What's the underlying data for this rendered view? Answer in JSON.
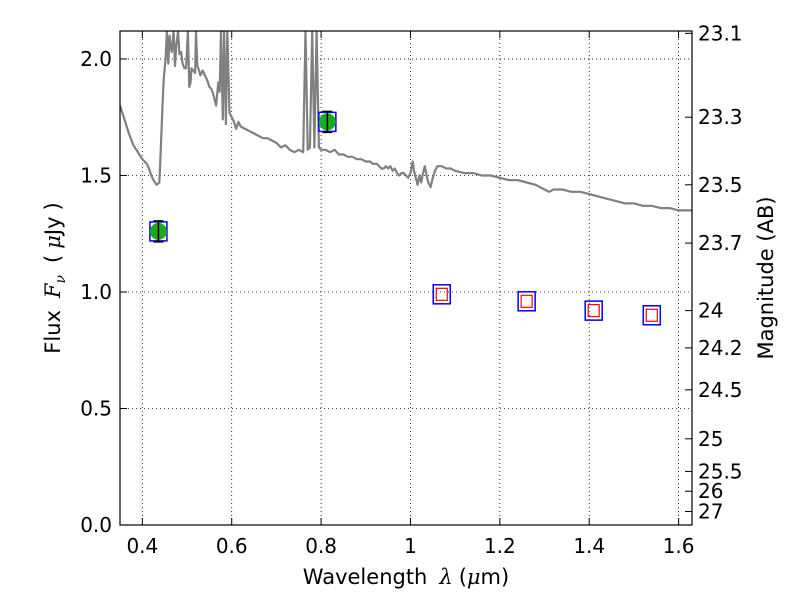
{
  "chart_data": {
    "type": "scatter",
    "xlabel_prefix": "Wavelength",
    "xlabel_math": "λ",
    "xlabel_unit_open": "(",
    "xlabel_unit_mu": "μ",
    "xlabel_unit_rest": "m)",
    "ylabel_prefix": "Flux",
    "ylabel_math": "F",
    "ylabel_math_sub": "ν",
    "ylabel_paren_open": "(",
    "ylabel_unit_mu": "μ",
    "ylabel_unit_rest": "Jy",
    "ylabel_paren_close": ")",
    "y2label": "Magnitude (AB)",
    "xlim": [
      0.35,
      1.63
    ],
    "ylim": [
      0.0,
      2.12
    ],
    "grid": true,
    "x_ticks": [
      0.4,
      0.6,
      0.8,
      1.0,
      1.2,
      1.4,
      1.6
    ],
    "x_tick_labels": [
      "0.4",
      "0.6",
      "0.8",
      "1",
      "1.2",
      "1.4",
      "1.6"
    ],
    "y_ticks": [
      0.0,
      0.5,
      1.0,
      1.5,
      2.0
    ],
    "y_tick_labels": [
      "0.0",
      "0.5",
      "1.0",
      "1.5",
      "2.0"
    ],
    "y2_ticks": [
      {
        "label": "23.1",
        "flux": 2.11
      },
      {
        "label": "23.3",
        "flux": 1.75
      },
      {
        "label": "23.5",
        "flux": 1.46
      },
      {
        "label": "23.7",
        "flux": 1.21
      },
      {
        "label": "24",
        "flux": 0.92
      },
      {
        "label": "24.2",
        "flux": 0.76
      },
      {
        "label": "24.5",
        "flux": 0.58
      },
      {
        "label": "25",
        "flux": 0.37
      },
      {
        "label": "25.5",
        "flux": 0.23
      },
      {
        "label": "26",
        "flux": 0.145
      },
      {
        "label": "27",
        "flux": 0.058
      }
    ],
    "series": [
      {
        "kind": "line",
        "color": "#808080",
        "points": [
          [
            0.35,
            1.8
          ],
          [
            0.36,
            1.74
          ],
          [
            0.37,
            1.68
          ],
          [
            0.38,
            1.63
          ],
          [
            0.39,
            1.6
          ],
          [
            0.4,
            1.57
          ],
          [
            0.41,
            1.55
          ],
          [
            0.415,
            1.53
          ],
          [
            0.42,
            1.5
          ],
          [
            0.425,
            1.48
          ],
          [
            0.432,
            1.46
          ],
          [
            0.438,
            1.47
          ],
          [
            0.44,
            1.55
          ],
          [
            0.445,
            1.8
          ],
          [
            0.448,
            1.92
          ],
          [
            0.452,
            2.0
          ],
          [
            0.455,
            2.12
          ],
          [
            0.458,
            1.98
          ],
          [
            0.461,
            2.1
          ],
          [
            0.463,
            2.06
          ],
          [
            0.466,
            2.03
          ],
          [
            0.47,
            2.12
          ],
          [
            0.473,
            1.97
          ],
          [
            0.476,
            2.06
          ],
          [
            0.48,
            2.12
          ],
          [
            0.483,
            2.02
          ],
          [
            0.487,
            2.03
          ],
          [
            0.49,
            1.98
          ],
          [
            0.494,
            1.96
          ],
          [
            0.498,
            1.96
          ],
          [
            0.502,
            2.12
          ],
          [
            0.505,
            1.88
          ],
          [
            0.508,
            1.9
          ],
          [
            0.51,
            1.96
          ],
          [
            0.514,
            1.95
          ],
          [
            0.518,
            1.94
          ],
          [
            0.52,
            2.12
          ],
          [
            0.523,
            1.97
          ],
          [
            0.527,
            1.95
          ],
          [
            0.53,
            1.93
          ],
          [
            0.535,
            1.95
          ],
          [
            0.54,
            1.93
          ],
          [
            0.545,
            1.91
          ],
          [
            0.55,
            1.88
          ],
          [
            0.555,
            1.87
          ],
          [
            0.56,
            1.84
          ],
          [
            0.565,
            1.8
          ],
          [
            0.57,
            1.9
          ],
          [
            0.573,
            1.86
          ],
          [
            0.576,
            2.12
          ],
          [
            0.58,
            1.74
          ],
          [
            0.583,
            2.12
          ],
          [
            0.587,
            1.72
          ],
          [
            0.59,
            2.12
          ],
          [
            0.595,
            1.77
          ],
          [
            0.6,
            1.75
          ],
          [
            0.605,
            1.73
          ],
          [
            0.61,
            1.7
          ],
          [
            0.615,
            1.73
          ],
          [
            0.62,
            1.71
          ],
          [
            0.63,
            1.7
          ],
          [
            0.64,
            1.69
          ],
          [
            0.65,
            1.68
          ],
          [
            0.66,
            1.67
          ],
          [
            0.67,
            1.66
          ],
          [
            0.68,
            1.66
          ],
          [
            0.69,
            1.65
          ],
          [
            0.7,
            1.64
          ],
          [
            0.71,
            1.62
          ],
          [
            0.72,
            1.63
          ],
          [
            0.73,
            1.61
          ],
          [
            0.74,
            1.6
          ],
          [
            0.75,
            1.61
          ],
          [
            0.76,
            1.6
          ],
          [
            0.765,
            2.12
          ],
          [
            0.77,
            1.61
          ],
          [
            0.775,
            1.62
          ],
          [
            0.78,
            2.12
          ],
          [
            0.785,
            1.62
          ],
          [
            0.79,
            2.12
          ],
          [
            0.795,
            1.62
          ],
          [
            0.8,
            1.61
          ],
          [
            0.81,
            1.61
          ],
          [
            0.82,
            1.6
          ],
          [
            0.83,
            1.61
          ],
          [
            0.84,
            1.59
          ],
          [
            0.85,
            1.59
          ],
          [
            0.86,
            1.58
          ],
          [
            0.87,
            1.58
          ],
          [
            0.88,
            1.57
          ],
          [
            0.89,
            1.57
          ],
          [
            0.9,
            1.56
          ],
          [
            0.91,
            1.56
          ],
          [
            0.915,
            1.55
          ],
          [
            0.92,
            1.55
          ],
          [
            0.925,
            1.55
          ],
          [
            0.93,
            1.54
          ],
          [
            0.935,
            1.53
          ],
          [
            0.94,
            1.53
          ],
          [
            0.945,
            1.54
          ],
          [
            0.95,
            1.53
          ],
          [
            0.955,
            1.54
          ],
          [
            0.96,
            1.52
          ],
          [
            0.965,
            1.53
          ],
          [
            0.97,
            1.51
          ],
          [
            0.975,
            1.5
          ],
          [
            0.98,
            1.51
          ],
          [
            0.985,
            1.51
          ],
          [
            0.99,
            1.5
          ],
          [
            0.995,
            1.49
          ],
          [
            1.0,
            1.51
          ],
          [
            1.002,
            1.53
          ],
          [
            1.005,
            1.56
          ],
          [
            1.008,
            1.52
          ],
          [
            1.012,
            1.49
          ],
          [
            1.016,
            1.46
          ],
          [
            1.02,
            1.5
          ],
          [
            1.024,
            1.47
          ],
          [
            1.028,
            1.51
          ],
          [
            1.032,
            1.54
          ],
          [
            1.036,
            1.5
          ],
          [
            1.04,
            1.47
          ],
          [
            1.045,
            1.45
          ],
          [
            1.05,
            1.49
          ],
          [
            1.055,
            1.52
          ],
          [
            1.06,
            1.54
          ],
          [
            1.07,
            1.54
          ],
          [
            1.08,
            1.53
          ],
          [
            1.09,
            1.53
          ],
          [
            1.1,
            1.52
          ],
          [
            1.12,
            1.51
          ],
          [
            1.14,
            1.51
          ],
          [
            1.16,
            1.5
          ],
          [
            1.18,
            1.5
          ],
          [
            1.2,
            1.49
          ],
          [
            1.22,
            1.48
          ],
          [
            1.24,
            1.48
          ],
          [
            1.26,
            1.47
          ],
          [
            1.28,
            1.46
          ],
          [
            1.3,
            1.44
          ],
          [
            1.31,
            1.43
          ],
          [
            1.32,
            1.44
          ],
          [
            1.34,
            1.44
          ],
          [
            1.36,
            1.43
          ],
          [
            1.38,
            1.43
          ],
          [
            1.4,
            1.42
          ],
          [
            1.42,
            1.41
          ],
          [
            1.44,
            1.4
          ],
          [
            1.46,
            1.39
          ],
          [
            1.48,
            1.38
          ],
          [
            1.5,
            1.38
          ],
          [
            1.52,
            1.37
          ],
          [
            1.54,
            1.37
          ],
          [
            1.56,
            1.36
          ],
          [
            1.58,
            1.36
          ],
          [
            1.6,
            1.35
          ],
          [
            1.62,
            1.35
          ],
          [
            1.63,
            1.35
          ]
        ]
      },
      {
        "kind": "observed",
        "color": "#1aaa1a",
        "error_color": "#000000",
        "box_color": "#0000ff",
        "points": [
          {
            "x": 0.436,
            "y": 1.26,
            "err": 0.045
          },
          {
            "x": 0.814,
            "y": 1.73,
            "err": 0.045
          }
        ]
      },
      {
        "kind": "model",
        "inner_color": "#ff0000",
        "box_color": "#0000ff",
        "points": [
          {
            "x": 1.07,
            "y": 0.99
          },
          {
            "x": 1.26,
            "y": 0.96
          },
          {
            "x": 1.41,
            "y": 0.92
          },
          {
            "x": 1.54,
            "y": 0.9
          }
        ]
      }
    ]
  }
}
